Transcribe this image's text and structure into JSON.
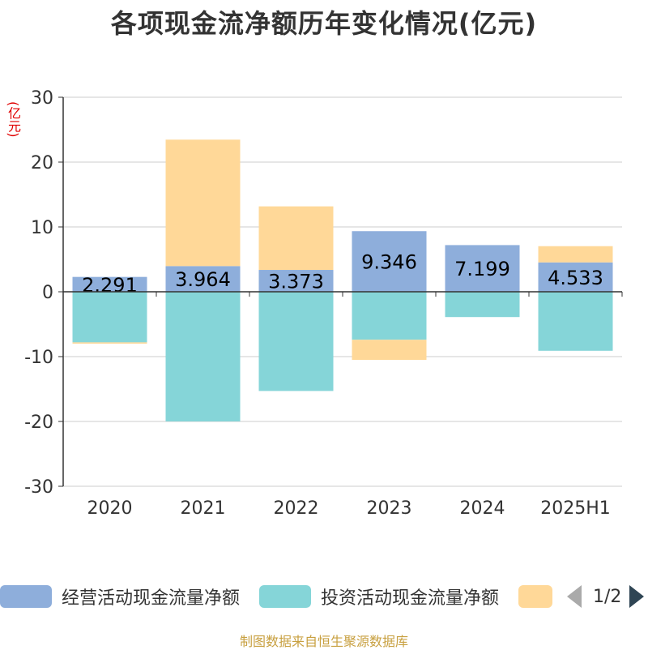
{
  "title": "各项现金流净额历年变化情况(亿元)",
  "unit_label": "(亿元)",
  "source": "制图数据来自恒生聚源数据库",
  "legend": {
    "items": [
      {
        "label": "经营活动现金流量净额",
        "color": "#8eaedb"
      },
      {
        "label": "投资活动现金流量净额",
        "color": "#85d5d8"
      },
      {
        "label": "",
        "color": "#ffd898"
      }
    ],
    "page": "1/2"
  },
  "colors": {
    "axis": "#333333",
    "grid": "#cccccc",
    "tick_text": "#333333",
    "label_text": "#000000"
  },
  "chart_data": {
    "type": "bar",
    "stacked": true,
    "categories": [
      "2020",
      "2021",
      "2022",
      "2023",
      "2024",
      "2025H1"
    ],
    "ylim": [
      -30,
      30
    ],
    "yticks": [
      30,
      20,
      10,
      0,
      -10,
      -20,
      -30
    ],
    "grid": true,
    "legend_position": "bottom",
    "series": [
      {
        "name": "经营活动现金流量净额",
        "color": "#8eaedb",
        "values": [
          2.291,
          3.964,
          3.373,
          9.346,
          7.199,
          4.533
        ],
        "labels": [
          "2.291",
          "3.964",
          "3.373",
          "9.346",
          "7.199",
          "4.533"
        ]
      },
      {
        "name": "投资活动现金流量净额",
        "color": "#85d5d8",
        "values": [
          -7.8,
          -20.0,
          -15.3,
          -7.4,
          -3.9,
          -9.1
        ]
      },
      {
        "name": "",
        "color": "#ffd898",
        "values": [
          -0.2,
          19.5,
          9.8,
          -3.1,
          0,
          2.5
        ]
      }
    ]
  }
}
